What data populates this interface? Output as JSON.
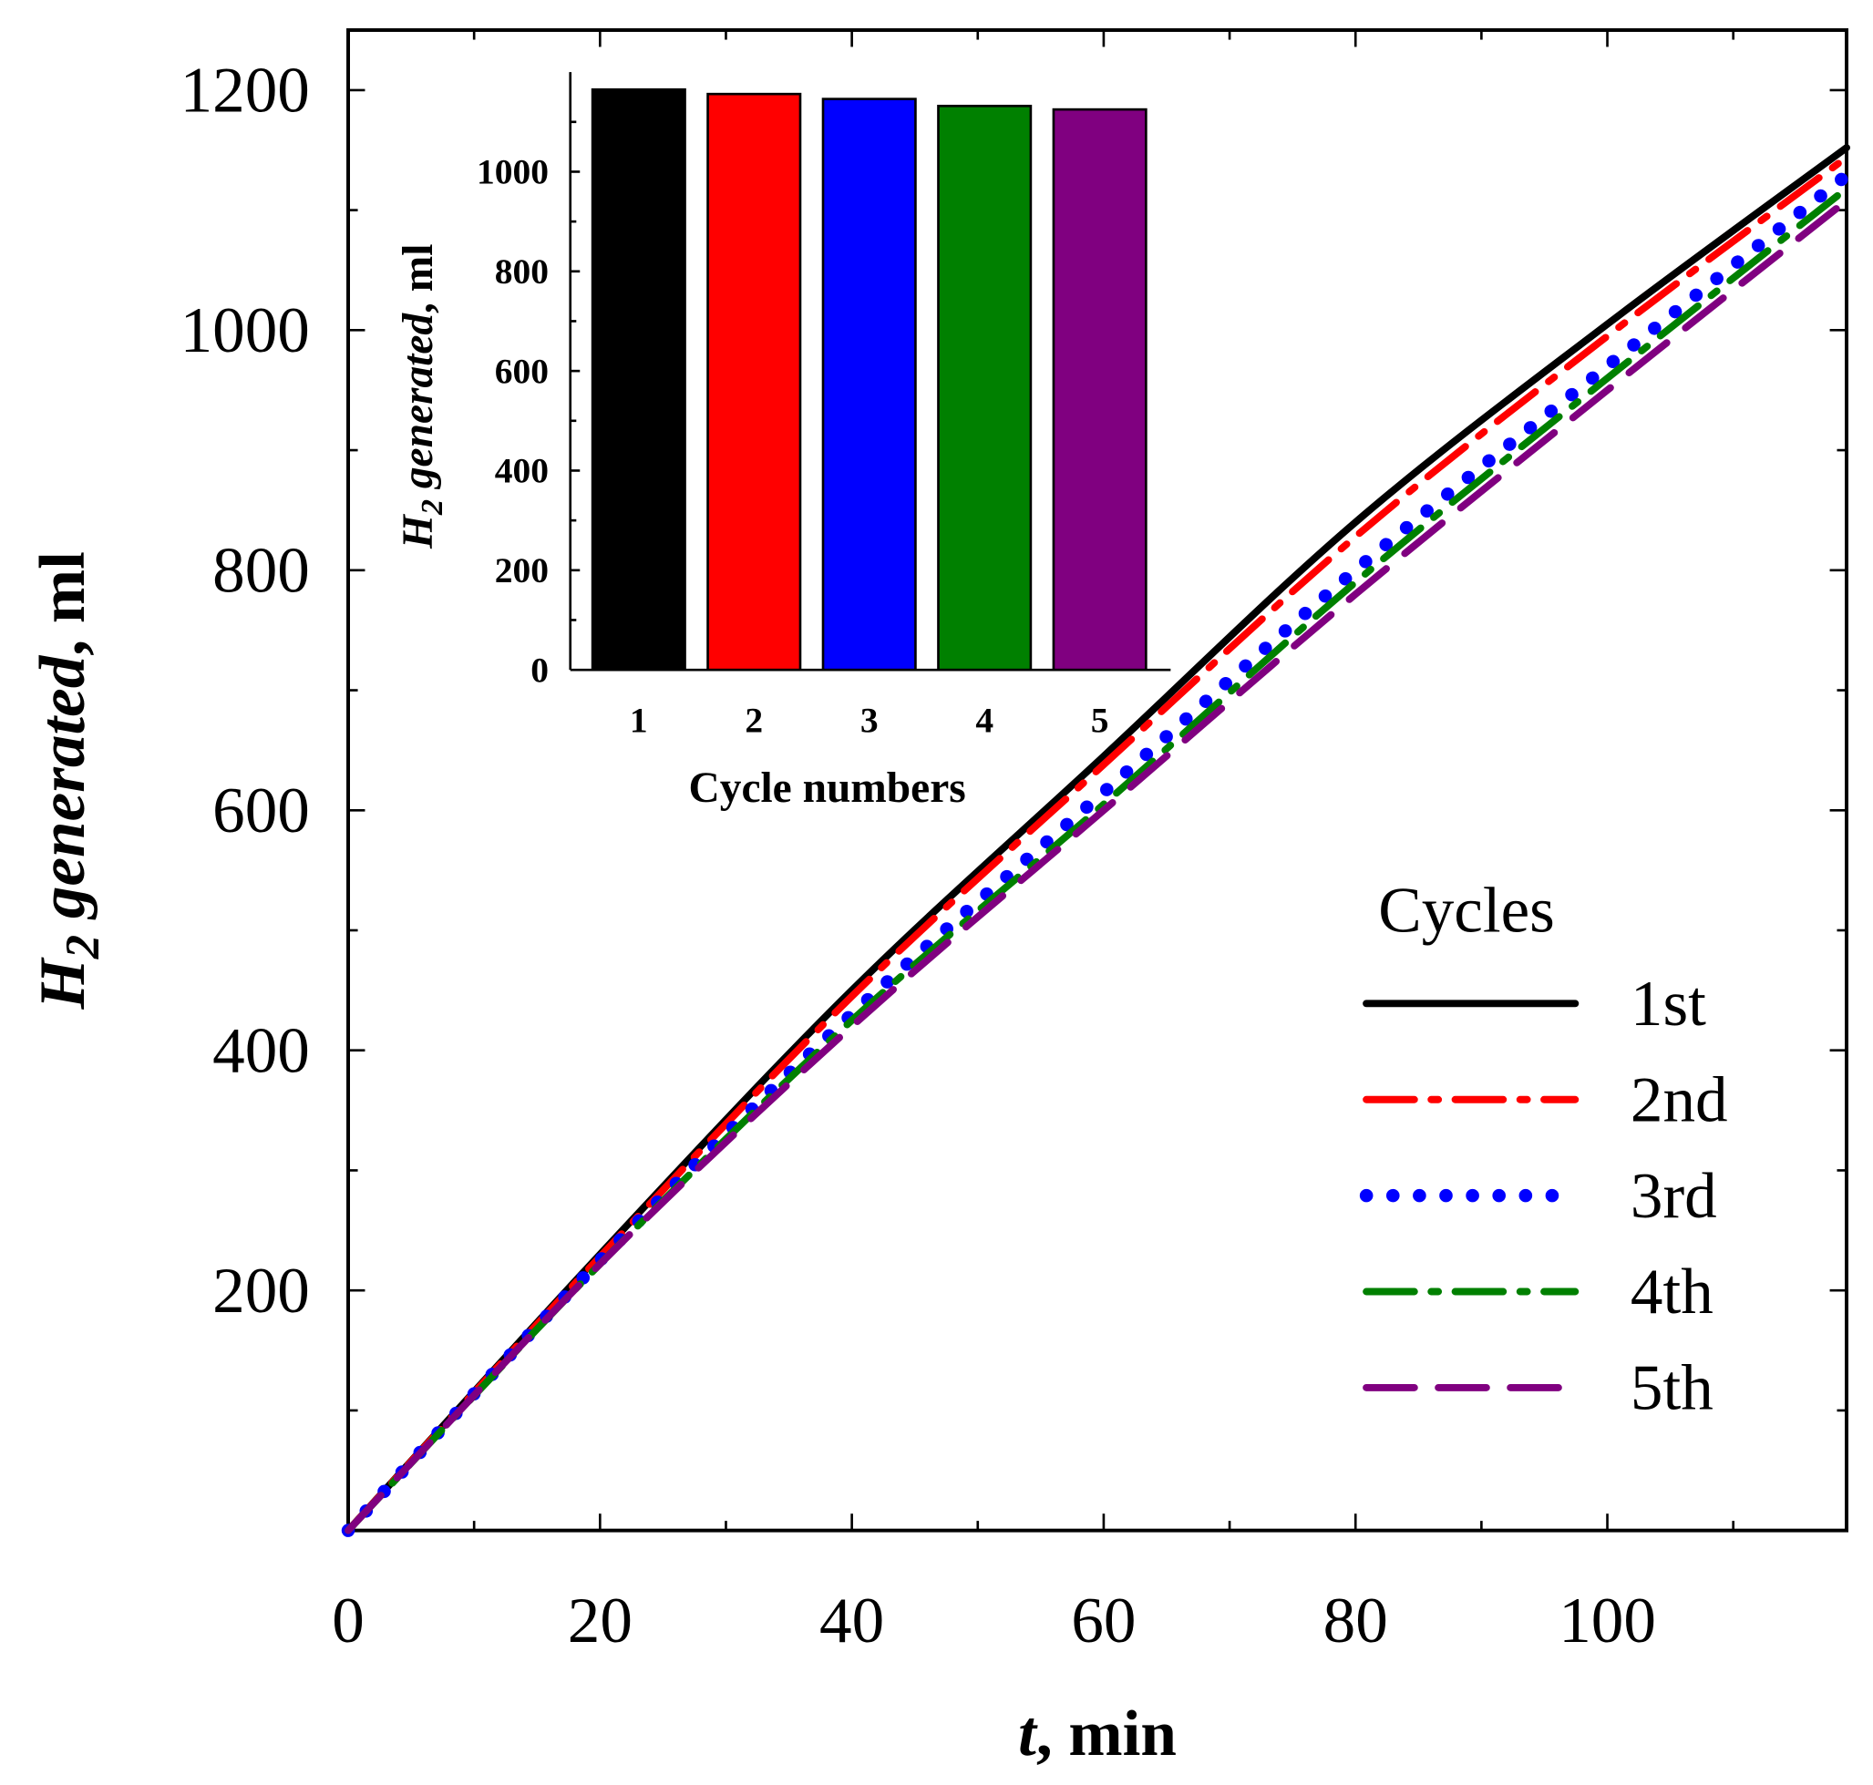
{
  "chart_data": [
    {
      "type": "line",
      "xlabel": "t, min",
      "ylabel": "H2 generated, ml",
      "xlim": [
        0,
        119
      ],
      "ylim": [
        0,
        1250
      ],
      "xticks": [
        0,
        20,
        40,
        60,
        80,
        100
      ],
      "yticks": [
        200,
        400,
        600,
        800,
        1000,
        1200
      ],
      "grid": false,
      "legend": {
        "title": "Cycles",
        "placement": "right"
      },
      "x": [
        0,
        20,
        40,
        60,
        80,
        100,
        119
      ],
      "series": [
        {
          "name": "1st",
          "color": "#000000",
          "dash": "solid",
          "values": [
            0,
            230,
            450,
            645,
            840,
            1005,
            1152
          ]
        },
        {
          "name": "2nd",
          "color": "#ff0000",
          "dash": "dash-dot",
          "values": [
            0,
            228,
            445,
            638,
            828,
            995,
            1144
          ]
        },
        {
          "name": "3rd",
          "color": "#0000ff",
          "dash": "dot",
          "values": [
            0,
            225,
            430,
            615,
            800,
            970,
            1129
          ]
        },
        {
          "name": "4th",
          "color": "#008000",
          "dash": "dash-dot",
          "values": [
            0,
            222,
            425,
            605,
            790,
            960,
            1118
          ]
        },
        {
          "name": "5th",
          "color": "#800080",
          "dash": "dash",
          "values": [
            0,
            222,
            420,
            600,
            780,
            950,
            1108
          ]
        }
      ]
    },
    {
      "type": "bar",
      "xlabel": "Cycle numbers",
      "ylabel": "H2 generated, ml",
      "ylim": [
        0,
        1200
      ],
      "yticks": [
        0,
        200,
        400,
        600,
        800,
        1000
      ],
      "categories": [
        "1",
        "2",
        "3",
        "4",
        "5"
      ],
      "values": [
        1165,
        1156,
        1146,
        1132,
        1125
      ],
      "colors": [
        "#000000",
        "#ff0000",
        "#0000ff",
        "#008000",
        "#800080"
      ]
    }
  ]
}
